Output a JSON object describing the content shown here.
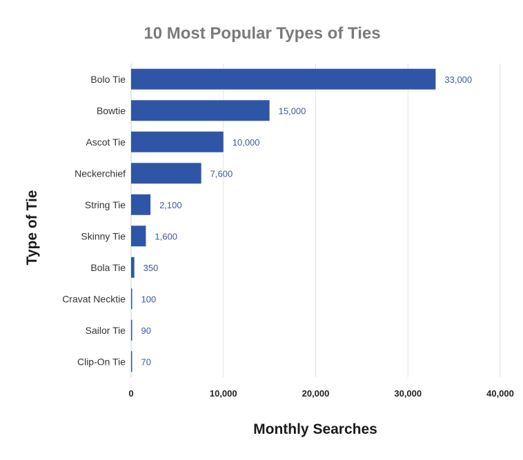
{
  "chart_data": {
    "type": "bar",
    "orientation": "horizontal",
    "title": "10 Most Popular Types of Ties",
    "xlabel": "Monthly Searches",
    "ylabel": "Type of Tie",
    "categories": [
      "Bolo Tie",
      "Bowtie",
      "Ascot Tie",
      "Neckerchief",
      "String Tie",
      "Skinny Tie",
      "Bola Tie",
      "Cravat Necktie",
      "Sailor Tie",
      "Clip-On Tie"
    ],
    "values": [
      33000,
      15000,
      10000,
      7600,
      2100,
      1600,
      350,
      100,
      90,
      70
    ],
    "value_labels": [
      "33,000",
      "15,000",
      "10,000",
      "7,600",
      "2,100",
      "1,600",
      "350",
      "100",
      "90",
      "70"
    ],
    "xlim": [
      0,
      40000
    ],
    "xticks": [
      0,
      10000,
      20000,
      30000,
      40000
    ],
    "xtick_labels": [
      "0",
      "10,000",
      "20,000",
      "30,000",
      "40,000"
    ],
    "grid": true,
    "legend": "none",
    "colors": {
      "bar": "#2f56a6",
      "title": "#7a7a7a",
      "data_label": "#3a5a9a",
      "grid": "#e3e3e3"
    }
  }
}
